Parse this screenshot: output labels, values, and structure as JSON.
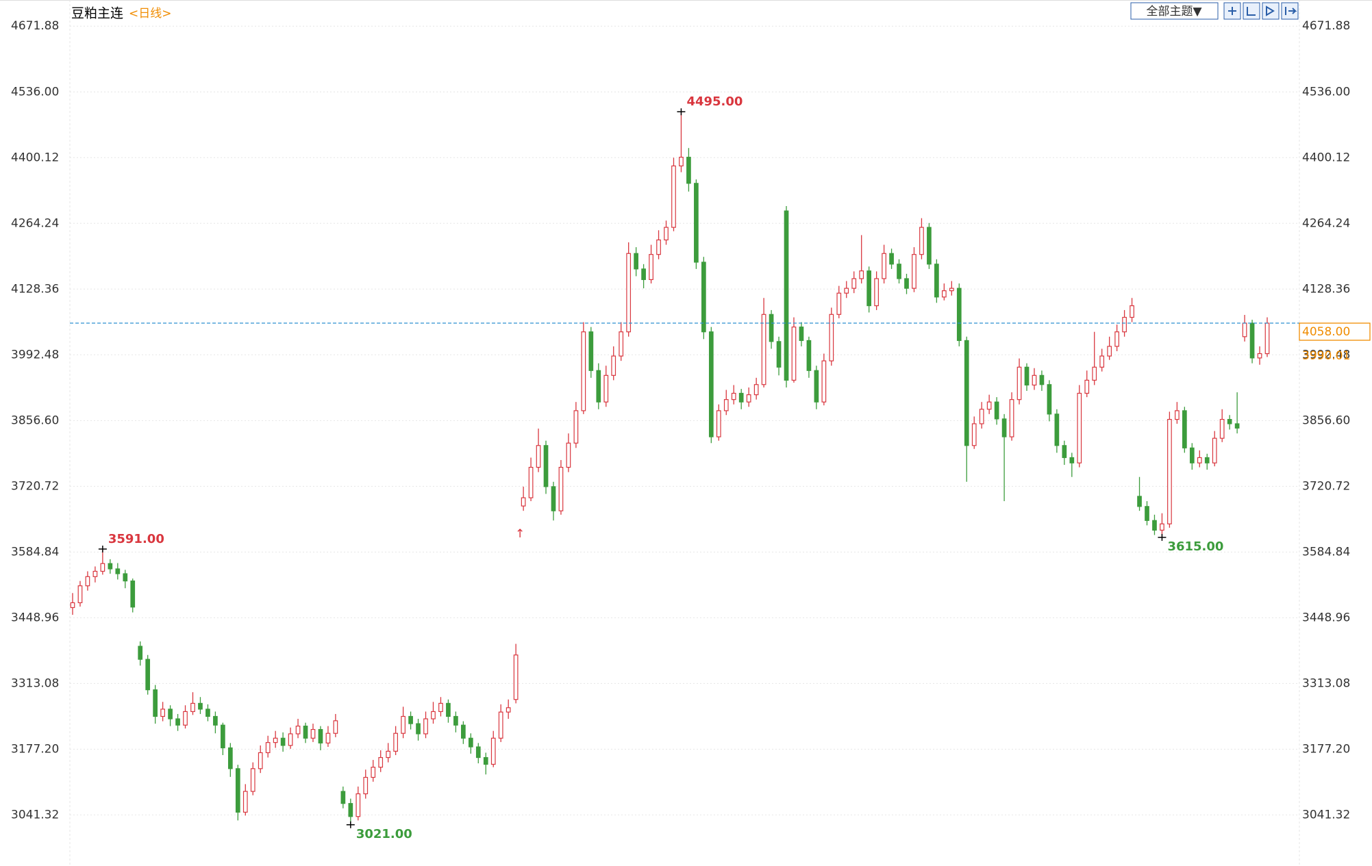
{
  "chart_data": {
    "type": "candlestick",
    "title": "豆粕主连",
    "period": "<日线>",
    "theme_button": "全部主题▼",
    "ylim": [
      2940,
      4726
    ],
    "yticks": [
      {
        "value": 4671.88,
        "label": "4671.88"
      },
      {
        "value": 4536,
        "label": "4536.00"
      },
      {
        "value": 4400.12,
        "label": "4400.12"
      },
      {
        "value": 4264.24,
        "label": "4264.24"
      },
      {
        "value": 4128.36,
        "label": "4128.36"
      },
      {
        "value": 3992.48,
        "label": "3992.48"
      },
      {
        "value": 3856.6,
        "label": "3856.60"
      },
      {
        "value": 3720.72,
        "label": "3720.72"
      },
      {
        "value": 3584.84,
        "label": "3584.84"
      },
      {
        "value": 3448.96,
        "label": "3448.96"
      },
      {
        "value": 3313.08,
        "label": "3313.08"
      },
      {
        "value": 3177.2,
        "label": "3177.20"
      },
      {
        "value": 3041.32,
        "label": "3041.32"
      }
    ],
    "grid": true,
    "up_color": "#d9363e",
    "down_color": "#3c9c3c",
    "series": [
      {
        "values": [
          [
            3470,
            3500,
            3455,
            3480
          ],
          [
            3480,
            3525,
            3472,
            3515
          ],
          [
            3515,
            3545,
            3505,
            3534
          ],
          [
            3534,
            3555,
            3522,
            3545
          ],
          [
            3545,
            3591,
            3538,
            3561
          ],
          [
            3561,
            3570,
            3540,
            3550
          ],
          [
            3550,
            3562,
            3528,
            3540
          ],
          [
            3540,
            3548,
            3510,
            3525
          ],
          [
            3525,
            3530,
            3460,
            3471
          ],
          [
            3390,
            3400,
            3350,
            3363
          ],
          [
            3363,
            3372,
            3290,
            3300
          ],
          [
            3300,
            3310,
            3230,
            3245
          ],
          [
            3245,
            3275,
            3235,
            3260
          ],
          [
            3260,
            3268,
            3225,
            3240
          ],
          [
            3240,
            3250,
            3215,
            3227
          ],
          [
            3227,
            3268,
            3220,
            3255
          ],
          [
            3255,
            3295,
            3248,
            3272
          ],
          [
            3272,
            3285,
            3250,
            3260
          ],
          [
            3260,
            3270,
            3235,
            3245
          ],
          [
            3245,
            3255,
            3210,
            3227
          ],
          [
            3227,
            3232,
            3165,
            3180
          ],
          [
            3180,
            3190,
            3120,
            3137
          ],
          [
            3137,
            3145,
            3030,
            3047
          ],
          [
            3047,
            3105,
            3040,
            3090
          ],
          [
            3090,
            3150,
            3082,
            3137
          ],
          [
            3137,
            3185,
            3128,
            3170
          ],
          [
            3170,
            3205,
            3160,
            3191
          ],
          [
            3191,
            3215,
            3180,
            3200
          ],
          [
            3200,
            3212,
            3172,
            3185
          ],
          [
            3185,
            3222,
            3178,
            3209
          ],
          [
            3209,
            3240,
            3200,
            3225
          ],
          [
            3225,
            3232,
            3190,
            3200
          ],
          [
            3200,
            3230,
            3192,
            3218
          ],
          [
            3218,
            3225,
            3175,
            3190
          ],
          [
            3190,
            3225,
            3182,
            3210
          ],
          [
            3210,
            3250,
            3202,
            3236
          ],
          [
            3090,
            3100,
            3055,
            3065
          ],
          [
            3065,
            3075,
            3021,
            3038
          ],
          [
            3038,
            3100,
            3030,
            3085
          ],
          [
            3085,
            3135,
            3075,
            3119
          ],
          [
            3119,
            3155,
            3110,
            3140
          ],
          [
            3140,
            3175,
            3130,
            3160
          ],
          [
            3160,
            3190,
            3150,
            3173
          ],
          [
            3173,
            3225,
            3165,
            3210
          ],
          [
            3210,
            3265,
            3200,
            3245
          ],
          [
            3245,
            3255,
            3218,
            3230
          ],
          [
            3230,
            3240,
            3195,
            3209
          ],
          [
            3209,
            3255,
            3200,
            3240
          ],
          [
            3240,
            3275,
            3230,
            3255
          ],
          [
            3255,
            3285,
            3245,
            3272
          ],
          [
            3272,
            3280,
            3232,
            3245
          ],
          [
            3245,
            3255,
            3212,
            3227
          ],
          [
            3227,
            3235,
            3188,
            3200
          ],
          [
            3200,
            3210,
            3168,
            3182
          ],
          [
            3182,
            3190,
            3148,
            3160
          ],
          [
            3160,
            3170,
            3125,
            3146
          ],
          [
            3146,
            3215,
            3140,
            3200
          ],
          [
            3200,
            3270,
            3192,
            3254
          ],
          [
            3254,
            3280,
            3240,
            3263
          ],
          [
            3280,
            3395,
            3272,
            3372
          ],
          [
            3680,
            3720,
            3670,
            3697
          ],
          [
            3697,
            3780,
            3690,
            3760
          ],
          [
            3760,
            3840,
            3750,
            3805
          ],
          [
            3805,
            3815,
            3705,
            3720
          ],
          [
            3720,
            3730,
            3650,
            3670
          ],
          [
            3670,
            3775,
            3662,
            3760
          ],
          [
            3760,
            3830,
            3750,
            3810
          ],
          [
            3810,
            3895,
            3800,
            3877
          ],
          [
            3877,
            4060,
            3870,
            4040
          ],
          [
            4040,
            4050,
            3945,
            3960
          ],
          [
            3960,
            3975,
            3880,
            3895
          ],
          [
            3895,
            3970,
            3885,
            3950
          ],
          [
            3950,
            4010,
            3940,
            3990
          ],
          [
            3990,
            4060,
            3980,
            4040
          ],
          [
            4040,
            4225,
            4030,
            4202
          ],
          [
            4202,
            4215,
            4155,
            4170
          ],
          [
            4170,
            4180,
            4130,
            4148
          ],
          [
            4148,
            4220,
            4140,
            4200
          ],
          [
            4200,
            4250,
            4190,
            4230
          ],
          [
            4230,
            4270,
            4220,
            4256
          ],
          [
            4256,
            4400,
            4248,
            4383
          ],
          [
            4383,
            4495,
            4370,
            4401
          ],
          [
            4401,
            4420,
            4330,
            4347
          ],
          [
            4347,
            4355,
            4170,
            4184
          ],
          [
            4184,
            4195,
            4025,
            4040
          ],
          [
            4040,
            4050,
            3810,
            3823
          ],
          [
            3823,
            3890,
            3815,
            3877
          ],
          [
            3877,
            3920,
            3868,
            3900
          ],
          [
            3900,
            3930,
            3890,
            3913
          ],
          [
            3913,
            3922,
            3880,
            3895
          ],
          [
            3895,
            3925,
            3885,
            3910
          ],
          [
            3910,
            3945,
            3900,
            3931
          ],
          [
            3931,
            4110,
            3925,
            4076
          ],
          [
            4076,
            4085,
            4005,
            4020
          ],
          [
            4020,
            4030,
            3950,
            3967
          ],
          [
            4290,
            4300,
            3925,
            3940
          ],
          [
            3940,
            4070,
            3935,
            4050
          ],
          [
            4050,
            4060,
            4010,
            4022
          ],
          [
            4022,
            4030,
            3945,
            3960
          ],
          [
            3960,
            3970,
            3880,
            3895
          ],
          [
            3895,
            3995,
            3888,
            3980
          ],
          [
            3980,
            4090,
            3970,
            4076
          ],
          [
            4076,
            4135,
            4068,
            4120
          ],
          [
            4120,
            4145,
            4110,
            4130
          ],
          [
            4130,
            4165,
            4120,
            4150
          ],
          [
            4150,
            4240,
            4140,
            4166
          ],
          [
            4166,
            4175,
            4080,
            4094
          ],
          [
            4094,
            4165,
            4085,
            4150
          ],
          [
            4150,
            4220,
            4140,
            4202
          ],
          [
            4202,
            4212,
            4170,
            4180
          ],
          [
            4180,
            4190,
            4140,
            4150
          ],
          [
            4150,
            4160,
            4118,
            4130
          ],
          [
            4130,
            4215,
            4122,
            4200
          ],
          [
            4200,
            4275,
            4190,
            4256
          ],
          [
            4256,
            4265,
            4170,
            4180
          ],
          [
            4180,
            4190,
            4100,
            4112
          ],
          [
            4112,
            4140,
            4105,
            4125
          ],
          [
            4125,
            4145,
            4115,
            4130
          ],
          [
            4130,
            4140,
            4010,
            4022
          ],
          [
            4022,
            4030,
            3730,
            3805
          ],
          [
            3805,
            3865,
            3798,
            3850
          ],
          [
            3850,
            3895,
            3840,
            3880
          ],
          [
            3880,
            3910,
            3870,
            3895
          ],
          [
            3895,
            3905,
            3848,
            3860
          ],
          [
            3860,
            3870,
            3690,
            3823
          ],
          [
            3823,
            3915,
            3815,
            3900
          ],
          [
            3900,
            3985,
            3890,
            3967
          ],
          [
            3967,
            3975,
            3918,
            3930
          ],
          [
            3930,
            3965,
            3920,
            3950
          ],
          [
            3950,
            3960,
            3918,
            3931
          ],
          [
            3931,
            3940,
            3855,
            3870
          ],
          [
            3870,
            3880,
            3790,
            3805
          ],
          [
            3805,
            3815,
            3765,
            3780
          ],
          [
            3780,
            3790,
            3740,
            3769
          ],
          [
            3769,
            3930,
            3760,
            3913
          ],
          [
            3913,
            3960,
            3905,
            3940
          ],
          [
            3940,
            4040,
            3930,
            3967
          ],
          [
            3967,
            4005,
            3958,
            3990
          ],
          [
            3990,
            4030,
            3982,
            4010
          ],
          [
            4010,
            4055,
            4000,
            4040
          ],
          [
            4040,
            4085,
            4030,
            4070
          ],
          [
            4070,
            4110,
            4060,
            4094
          ],
          [
            3700,
            3740,
            3670,
            3679
          ],
          [
            3679,
            3690,
            3640,
            3650
          ],
          [
            3650,
            3662,
            3620,
            3630
          ],
          [
            3630,
            3665,
            3615,
            3643
          ],
          [
            3643,
            3875,
            3635,
            3859
          ],
          [
            3859,
            3895,
            3850,
            3877
          ],
          [
            3877,
            3885,
            3790,
            3800
          ],
          [
            3800,
            3810,
            3755,
            3769
          ],
          [
            3769,
            3795,
            3760,
            3780
          ],
          [
            3780,
            3788,
            3755,
            3769
          ],
          [
            3769,
            3835,
            3762,
            3820
          ],
          [
            3820,
            3880,
            3812,
            3859
          ],
          [
            3859,
            3868,
            3838,
            3850
          ],
          [
            3850,
            3915,
            3830,
            3841
          ],
          [
            4030,
            4075,
            4020,
            4058
          ],
          [
            4058,
            4065,
            3975,
            3986
          ],
          [
            3986,
            4010,
            3972,
            3995
          ],
          [
            3995,
            4070,
            3988,
            4058
          ]
        ]
      }
    ],
    "extremes": [
      {
        "value": 3591,
        "label": "3591.00"
      },
      {
        "value": 3021,
        "label": "3021.00"
      },
      {
        "value": 4495,
        "label": "4495.00"
      },
      {
        "value": 3615,
        "label": "3615.00"
      }
    ],
    "last_price": {
      "value": 4058,
      "label": "4058.00",
      "color": "#f08c00"
    },
    "indicator_value": {
      "value": 3990.01,
      "label": "3990.01",
      "color": "#f08c00"
    },
    "marker": "↑"
  }
}
